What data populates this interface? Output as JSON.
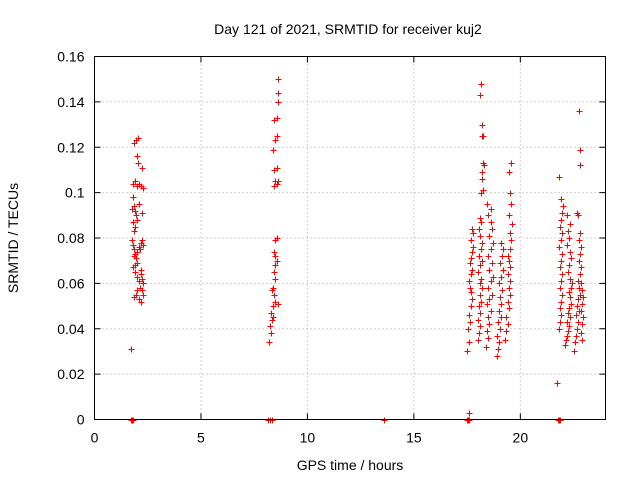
{
  "chart_data": {
    "type": "scatter",
    "title": "Day 121 of 2021, SRMTID for receiver kuj2",
    "xlabel": "GPS time / hours",
    "ylabel": "SRMTID / TECUs",
    "xlim": [
      0,
      24
    ],
    "ylim": [
      0,
      0.16
    ],
    "xticks": [
      0,
      5,
      10,
      15,
      20
    ],
    "xtick_labels": [
      "0",
      "5",
      "10",
      "15",
      "20"
    ],
    "yticks": [
      0,
      0.02,
      0.04,
      0.06,
      0.08,
      0.1,
      0.12,
      0.14,
      0.16
    ],
    "ytick_labels": [
      "0",
      "0.02",
      "0.04",
      "0.06",
      "0.08",
      "0.1",
      "0.12",
      "0.14",
      "0.16"
    ],
    "grid": true,
    "marker": "+",
    "marker_color": "#ff0000",
    "series": [
      {
        "name": "SRMTID",
        "points": [
          [
            1.7,
            0.031
          ],
          [
            1.85,
            0.122
          ],
          [
            1.95,
            0.123
          ],
          [
            2.05,
            0.124
          ],
          [
            1.8,
            0.104
          ],
          [
            1.9,
            0.105
          ],
          [
            2.0,
            0.103
          ],
          [
            2.1,
            0.104
          ],
          [
            2.2,
            0.103
          ],
          [
            2.3,
            0.102
          ],
          [
            2.25,
            0.111
          ],
          [
            2.0,
            0.116
          ],
          [
            2.05,
            0.113
          ],
          [
            1.8,
            0.098
          ],
          [
            1.85,
            0.094
          ],
          [
            1.9,
            0.092
          ],
          [
            1.95,
            0.09
          ],
          [
            2.0,
            0.088
          ],
          [
            1.75,
            0.093
          ],
          [
            2.1,
            0.095
          ],
          [
            1.8,
            0.087
          ],
          [
            1.9,
            0.085
          ],
          [
            2.25,
            0.091
          ],
          [
            1.85,
            0.083
          ],
          [
            1.75,
            0.079
          ],
          [
            1.8,
            0.077
          ],
          [
            1.85,
            0.075
          ],
          [
            1.9,
            0.073
          ],
          [
            1.95,
            0.071
          ],
          [
            2.0,
            0.074
          ],
          [
            2.1,
            0.076
          ],
          [
            2.2,
            0.078
          ],
          [
            2.25,
            0.079
          ],
          [
            2.3,
            0.077
          ],
          [
            1.9,
            0.068
          ],
          [
            1.8,
            0.067
          ],
          [
            2.0,
            0.069
          ],
          [
            1.85,
            0.072
          ],
          [
            2.15,
            0.075
          ],
          [
            1.9,
            0.065
          ],
          [
            2.0,
            0.063
          ],
          [
            2.1,
            0.061
          ],
          [
            2.2,
            0.064
          ],
          [
            2.25,
            0.062
          ],
          [
            2.3,
            0.06
          ],
          [
            2.15,
            0.058
          ],
          [
            2.0,
            0.057
          ],
          [
            1.95,
            0.055
          ],
          [
            1.85,
            0.054
          ],
          [
            2.1,
            0.053
          ],
          [
            2.2,
            0.052
          ],
          [
            2.3,
            0.055
          ],
          [
            2.25,
            0.057
          ],
          [
            2.2,
            0.066
          ],
          [
            1.7,
            0.0
          ],
          [
            1.75,
            0.0
          ],
          [
            1.8,
            0.0
          ],
          [
            8.2,
            0.034
          ],
          [
            8.3,
            0.038
          ],
          [
            8.25,
            0.041
          ],
          [
            8.35,
            0.044
          ],
          [
            8.3,
            0.047
          ],
          [
            8.4,
            0.05
          ],
          [
            8.5,
            0.052
          ],
          [
            8.45,
            0.055
          ],
          [
            8.4,
            0.058
          ],
          [
            8.5,
            0.062
          ],
          [
            8.45,
            0.065
          ],
          [
            8.5,
            0.068
          ],
          [
            8.55,
            0.07
          ],
          [
            8.5,
            0.072
          ],
          [
            8.45,
            0.074
          ],
          [
            8.5,
            0.079
          ],
          [
            8.55,
            0.08
          ],
          [
            8.4,
            0.045
          ],
          [
            8.6,
            0.051
          ],
          [
            8.35,
            0.057
          ],
          [
            8.45,
            0.103
          ],
          [
            8.5,
            0.105
          ],
          [
            8.55,
            0.104
          ],
          [
            8.6,
            0.105
          ],
          [
            8.45,
            0.11
          ],
          [
            8.55,
            0.111
          ],
          [
            8.4,
            0.119
          ],
          [
            8.5,
            0.123
          ],
          [
            8.55,
            0.125
          ],
          [
            8.45,
            0.132
          ],
          [
            8.55,
            0.133
          ],
          [
            8.6,
            0.14
          ],
          [
            8.6,
            0.144
          ],
          [
            8.6,
            0.15
          ],
          [
            8.15,
            0.0
          ],
          [
            8.25,
            0.0
          ],
          [
            8.35,
            0.0
          ],
          [
            13.6,
            0.0
          ],
          [
            17.5,
            0.03
          ],
          [
            17.6,
            0.034
          ],
          [
            17.55,
            0.04
          ],
          [
            17.65,
            0.043
          ],
          [
            17.6,
            0.046
          ],
          [
            17.7,
            0.05
          ],
          [
            17.75,
            0.053
          ],
          [
            17.7,
            0.056
          ],
          [
            17.65,
            0.058
          ],
          [
            17.6,
            0.061
          ],
          [
            17.7,
            0.064
          ],
          [
            17.75,
            0.066
          ],
          [
            17.65,
            0.069
          ],
          [
            17.7,
            0.071
          ],
          [
            17.75,
            0.074
          ],
          [
            17.8,
            0.076
          ],
          [
            17.7,
            0.079
          ],
          [
            17.8,
            0.082
          ],
          [
            17.75,
            0.084
          ],
          [
            17.6,
            0.003
          ],
          [
            18.0,
            0.035
          ],
          [
            18.05,
            0.038
          ],
          [
            18.1,
            0.041
          ],
          [
            18.0,
            0.044
          ],
          [
            18.1,
            0.047
          ],
          [
            18.05,
            0.05
          ],
          [
            18.15,
            0.052
          ],
          [
            18.1,
            0.055
          ],
          [
            18.2,
            0.058
          ],
          [
            18.1,
            0.06
          ],
          [
            18.15,
            0.062
          ],
          [
            18.0,
            0.065
          ],
          [
            18.1,
            0.068
          ],
          [
            18.2,
            0.07
          ],
          [
            18.05,
            0.072
          ],
          [
            18.15,
            0.075
          ],
          [
            18.2,
            0.078
          ],
          [
            18.1,
            0.081
          ],
          [
            18.05,
            0.084
          ],
          [
            18.15,
            0.087
          ],
          [
            18.1,
            0.089
          ],
          [
            18.4,
            0.032
          ],
          [
            18.5,
            0.036
          ],
          [
            18.45,
            0.039
          ],
          [
            18.55,
            0.042
          ],
          [
            18.5,
            0.045
          ],
          [
            18.6,
            0.048
          ],
          [
            18.45,
            0.051
          ],
          [
            18.55,
            0.053
          ],
          [
            18.65,
            0.055
          ],
          [
            18.5,
            0.058
          ],
          [
            18.6,
            0.061
          ],
          [
            18.7,
            0.063
          ],
          [
            18.55,
            0.066
          ],
          [
            18.65,
            0.069
          ],
          [
            18.5,
            0.072
          ],
          [
            18.6,
            0.075
          ],
          [
            18.7,
            0.078
          ],
          [
            18.55,
            0.081
          ],
          [
            18.65,
            0.084
          ],
          [
            18.6,
            0.087
          ],
          [
            18.5,
            0.09
          ],
          [
            18.6,
            0.093
          ],
          [
            18.45,
            0.095
          ],
          [
            18.9,
            0.028
          ],
          [
            18.95,
            0.031
          ],
          [
            19.0,
            0.034
          ],
          [
            18.9,
            0.037
          ],
          [
            19.05,
            0.04
          ],
          [
            18.95,
            0.043
          ],
          [
            19.1,
            0.045
          ],
          [
            19.0,
            0.048
          ],
          [
            19.1,
            0.051
          ],
          [
            19.05,
            0.054
          ],
          [
            19.15,
            0.057
          ],
          [
            19.0,
            0.06
          ],
          [
            19.1,
            0.063
          ],
          [
            19.2,
            0.066
          ],
          [
            19.05,
            0.069
          ],
          [
            19.15,
            0.072
          ],
          [
            19.2,
            0.075
          ],
          [
            19.1,
            0.078
          ],
          [
            19.3,
            0.035
          ],
          [
            19.35,
            0.039
          ],
          [
            19.4,
            0.042
          ],
          [
            19.35,
            0.045
          ],
          [
            19.45,
            0.049
          ],
          [
            19.4,
            0.052
          ],
          [
            19.5,
            0.055
          ],
          [
            19.45,
            0.058
          ],
          [
            19.5,
            0.061
          ],
          [
            19.4,
            0.064
          ],
          [
            19.5,
            0.067
          ],
          [
            19.45,
            0.07
          ],
          [
            19.4,
            0.072
          ],
          [
            19.5,
            0.075
          ],
          [
            19.55,
            0.079
          ],
          [
            19.5,
            0.082
          ],
          [
            19.6,
            0.086
          ],
          [
            19.45,
            0.09
          ],
          [
            19.55,
            0.095
          ],
          [
            19.5,
            0.1
          ],
          [
            19.45,
            0.109
          ],
          [
            19.55,
            0.113
          ],
          [
            18.15,
            0.1
          ],
          [
            18.25,
            0.101
          ],
          [
            18.2,
            0.106
          ],
          [
            18.2,
            0.109
          ],
          [
            18.25,
            0.113
          ],
          [
            18.3,
            0.112
          ],
          [
            18.2,
            0.125
          ],
          [
            18.25,
            0.125
          ],
          [
            18.2,
            0.13
          ],
          [
            18.1,
            0.143
          ],
          [
            18.15,
            0.148
          ],
          [
            17.5,
            0.0
          ],
          [
            17.55,
            0.0
          ],
          [
            17.6,
            0.0
          ],
          [
            21.7,
            0.016
          ],
          [
            21.75,
            0.0
          ],
          [
            21.8,
            0.0
          ],
          [
            21.85,
            0.0
          ],
          [
            21.8,
            0.04
          ],
          [
            21.85,
            0.043
          ],
          [
            21.9,
            0.046
          ],
          [
            21.85,
            0.049
          ],
          [
            21.9,
            0.052
          ],
          [
            21.95,
            0.055
          ],
          [
            21.85,
            0.058
          ],
          [
            21.9,
            0.061
          ],
          [
            21.95,
            0.064
          ],
          [
            21.85,
            0.067
          ],
          [
            21.9,
            0.07
          ],
          [
            21.95,
            0.073
          ],
          [
            21.8,
            0.076
          ],
          [
            21.9,
            0.079
          ],
          [
            21.95,
            0.082
          ],
          [
            21.85,
            0.085
          ],
          [
            21.9,
            0.088
          ],
          [
            21.95,
            0.091
          ],
          [
            22.0,
            0.094
          ],
          [
            21.9,
            0.097
          ],
          [
            21.8,
            0.107
          ],
          [
            22.1,
            0.033
          ],
          [
            22.15,
            0.035
          ],
          [
            22.2,
            0.037
          ],
          [
            22.25,
            0.039
          ],
          [
            22.3,
            0.041
          ],
          [
            22.2,
            0.043
          ],
          [
            22.35,
            0.045
          ],
          [
            22.25,
            0.047
          ],
          [
            22.3,
            0.049
          ],
          [
            22.4,
            0.051
          ],
          [
            22.35,
            0.054
          ],
          [
            22.3,
            0.056
          ],
          [
            22.4,
            0.058
          ],
          [
            22.45,
            0.06
          ],
          [
            22.35,
            0.062
          ],
          [
            22.25,
            0.065
          ],
          [
            22.3,
            0.068
          ],
          [
            22.4,
            0.071
          ],
          [
            22.35,
            0.074
          ],
          [
            22.2,
            0.077
          ],
          [
            22.3,
            0.08
          ],
          [
            22.25,
            0.083
          ],
          [
            22.35,
            0.086
          ],
          [
            22.2,
            0.09
          ],
          [
            22.5,
            0.03
          ],
          [
            22.55,
            0.034
          ],
          [
            22.6,
            0.037
          ],
          [
            22.65,
            0.04
          ],
          [
            22.7,
            0.043
          ],
          [
            22.6,
            0.046
          ],
          [
            22.75,
            0.048
          ],
          [
            22.65,
            0.05
          ],
          [
            22.7,
            0.053
          ],
          [
            22.8,
            0.055
          ],
          [
            22.75,
            0.058
          ],
          [
            22.7,
            0.061
          ],
          [
            22.8,
            0.064
          ],
          [
            22.85,
            0.067
          ],
          [
            22.75,
            0.07
          ],
          [
            22.8,
            0.073
          ],
          [
            22.85,
            0.076
          ],
          [
            22.75,
            0.079
          ],
          [
            22.8,
            0.082
          ],
          [
            22.7,
            0.09
          ],
          [
            22.65,
            0.091
          ],
          [
            22.8,
            0.112
          ],
          [
            22.8,
            0.119
          ],
          [
            22.75,
            0.136
          ],
          [
            22.9,
            0.035
          ],
          [
            22.85,
            0.038
          ],
          [
            22.9,
            0.042
          ],
          [
            22.95,
            0.045
          ],
          [
            22.85,
            0.048
          ],
          [
            22.9,
            0.051
          ],
          [
            22.95,
            0.054
          ],
          [
            22.9,
            0.057
          ],
          [
            22.85,
            0.06
          ]
        ]
      }
    ]
  }
}
